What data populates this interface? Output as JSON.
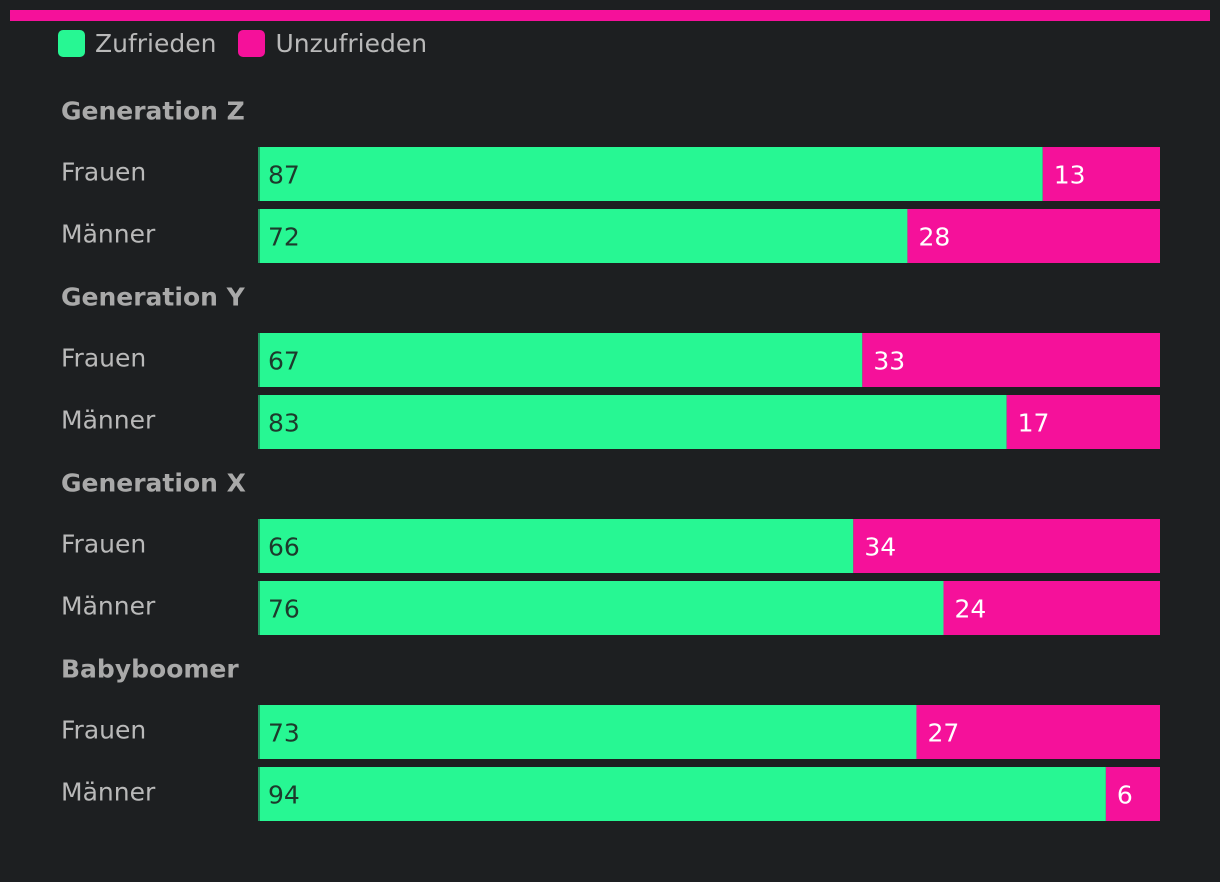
{
  "colors": {
    "background": "#1d1f21",
    "accent": "#f5119a",
    "satisfied": "#27f793",
    "dissatisfied": "#f5119a",
    "satisfied_text": "#1d3a2c",
    "dissatisfied_text": "#ffffff"
  },
  "legend": [
    {
      "label": "Zufrieden",
      "color": "#27f793"
    },
    {
      "label": "Unzufrieden",
      "color": "#f5119a"
    }
  ],
  "chart_data": {
    "type": "bar",
    "orientation": "horizontal",
    "stacked": true,
    "xlim": [
      0,
      100
    ],
    "legend_position": "top-left",
    "grid": false,
    "groups": [
      {
        "name": "Generation Z",
        "categories": [
          "Frauen",
          "Männer"
        ]
      },
      {
        "name": "Generation Y",
        "categories": [
          "Frauen",
          "Männer"
        ]
      },
      {
        "name": "Generation X",
        "categories": [
          "Frauen",
          "Männer"
        ]
      },
      {
        "name": "Babyboomer",
        "categories": [
          "Frauen",
          "Männer"
        ]
      }
    ],
    "series": [
      {
        "name": "Zufrieden",
        "color": "#27f793",
        "values": [
          87,
          72,
          67,
          83,
          66,
          76,
          73,
          94
        ]
      },
      {
        "name": "Unzufrieden",
        "color": "#f5119a",
        "values": [
          13,
          28,
          33,
          17,
          34,
          24,
          27,
          6
        ]
      }
    ]
  }
}
